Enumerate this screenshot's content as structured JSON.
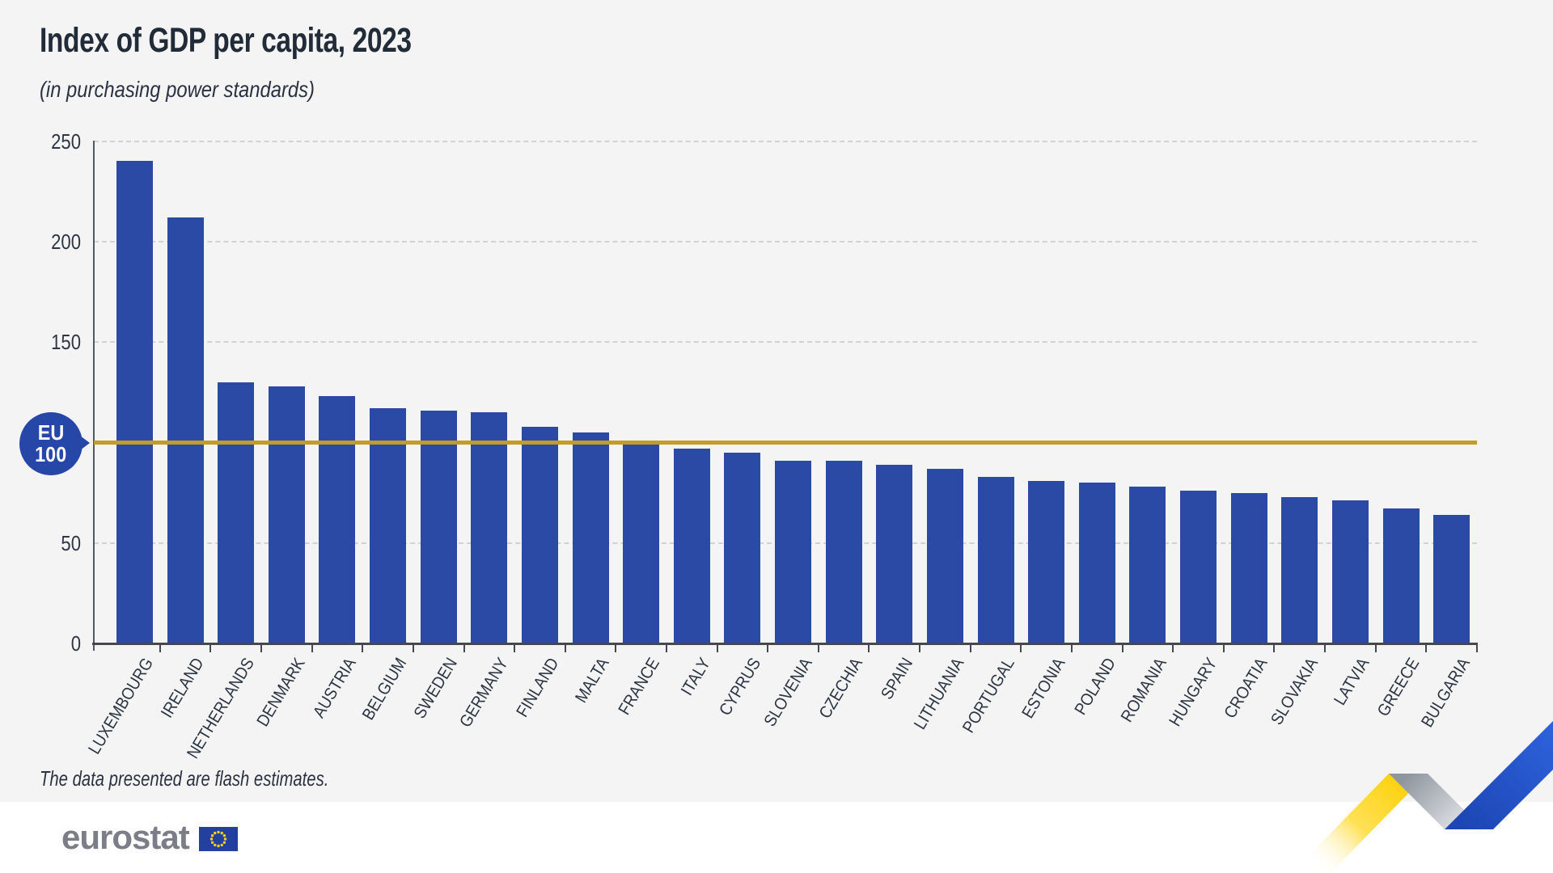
{
  "page": {
    "title": "Index of GDP per capita, 2023",
    "subtitle": "(in purchasing power standards)",
    "note": "The data presented are flash estimates.",
    "logo_text": "eurostat"
  },
  "y_axis": {
    "labels": [
      {
        "text": "250",
        "value": 250
      },
      {
        "text": "200",
        "value": 200
      },
      {
        "text": "150",
        "value": 150
      },
      {
        "text": "50",
        "value": 50
      },
      {
        "text": "0",
        "value": 0
      }
    ]
  },
  "chart_data": {
    "type": "bar",
    "title": "Index of GDP per capita, 2023",
    "subtitle": "(in purchasing power standards)",
    "categories": [
      "LUXEMBOURG",
      "IRELAND",
      "NETHERLANDS",
      "DENMARK",
      "AUSTRIA",
      "BELGIUM",
      "SWEDEN",
      "GERMANY",
      "FINLAND",
      "MALTA",
      "FRANCE",
      "ITALY",
      "CYPRUS",
      "SLOVENIA",
      "CZECHIA",
      "SPAIN",
      "LITHUANIA",
      "PORTUGAL",
      "ESTONIA",
      "POLAND",
      "ROMANIA",
      "HUNGARY",
      "CROATIA",
      "SLOVAKIA",
      "LATVIA",
      "GREECE",
      "BULGARIA"
    ],
    "values": [
      240,
      212,
      130,
      128,
      123,
      117,
      116,
      115,
      108,
      105,
      100,
      97,
      95,
      91,
      91,
      89,
      87,
      83,
      81,
      80,
      78,
      76,
      75,
      73,
      71,
      67,
      64
    ],
    "xlabel": "",
    "ylabel": "",
    "ylim": [
      0,
      250
    ],
    "yticks": [
      0,
      50,
      100,
      150,
      200,
      250
    ],
    "grid": "horizontal dashed at 50, 150, 200, 250",
    "legend": "none",
    "reference_line": {
      "value": 100,
      "label_line1": "EU",
      "label_line2": "100",
      "color": "#c19c27"
    },
    "bar_color": "#2b4aa6",
    "note": "The data presented are flash estimates."
  },
  "colors": {
    "background": "#f4f4f5",
    "footer_background": "#ffffff",
    "bar": "#2b4aa6",
    "eu_line": "#c19c27",
    "title_text": "#222b38",
    "axis_text": "#2e3644",
    "logo_gray": "#7b7e86",
    "flag_blue": "#24409e",
    "flag_star_yellow": "#f7d117",
    "ribbon_yellow": "#ffd200",
    "ribbon_gray": "#9aa0a8",
    "ribbon_blue": "#2454c8"
  }
}
